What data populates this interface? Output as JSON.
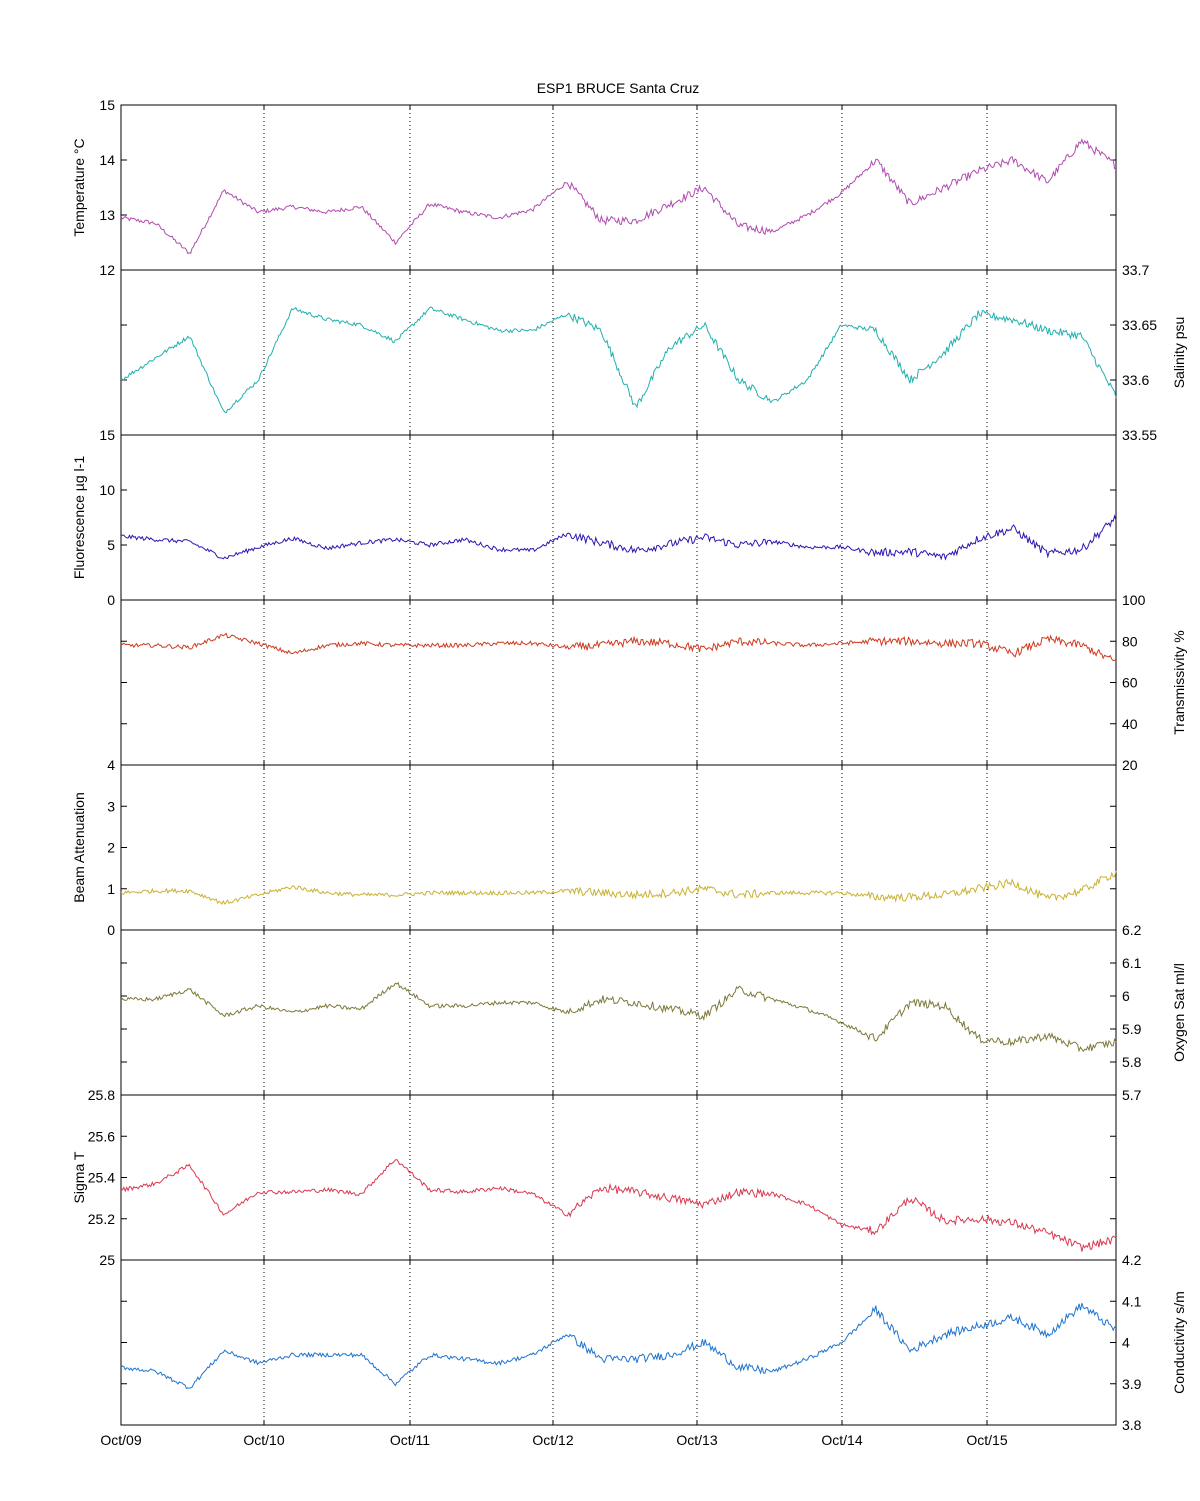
{
  "title": "ESP1 BRUCE Santa Cruz",
  "x_ticks": [
    "Oct/09",
    "Oct/10",
    "Oct/11",
    "Oct/12",
    "Oct/13",
    "Oct/14",
    "Oct/15"
  ],
  "chart_data": [
    {
      "type": "line",
      "ylabel": "Temperature °C",
      "axis_side": "left",
      "ylim": [
        12,
        15
      ],
      "yticks": [
        "12",
        "13",
        "14",
        "15"
      ],
      "color": "#b04cb0",
      "xlim": [
        "2007-10-09 00:00",
        "2007-10-15 22:00"
      ],
      "series": [
        {
          "x": [
            "Oct/09",
            "Oct/09 08:00",
            "Oct/09 12:00",
            "Oct/09 16:00",
            "Oct/10",
            "Oct/10 06:00",
            "Oct/10 12:00",
            "Oct/10 18:00",
            "Oct/10 22:00",
            "Oct/11",
            "Oct/11 06:00",
            "Oct/11 12:00",
            "Oct/11 18:00",
            "Oct/12",
            "Oct/12 06:00",
            "Oct/12 12:00",
            "Oct/12 18:00",
            "Oct/13",
            "Oct/13 06:00",
            "Oct/13 12:00",
            "Oct/13 18:00",
            "Oct/14",
            "Oct/14 06:00",
            "Oct/14 12:00",
            "Oct/14 18:00",
            "Oct/15",
            "Oct/15 06:00",
            "Oct/15 12:00",
            "Oct/15 18:00",
            "Oct/15 22:00"
          ],
          "values": [
            12.95,
            12.85,
            12.3,
            13.45,
            13.05,
            13.15,
            13.05,
            13.15,
            12.5,
            13.2,
            13.05,
            12.95,
            13.1,
            13.6,
            12.9,
            12.9,
            13.2,
            13.5,
            12.8,
            12.7,
            13.0,
            13.4,
            14.0,
            13.2,
            13.5,
            13.8,
            14.0,
            13.6,
            14.35,
            13.9
          ]
        }
      ]
    },
    {
      "type": "line",
      "ylabel": "Salinity psu",
      "axis_side": "right",
      "ylim": [
        33.55,
        33.7
      ],
      "yticks": [
        "33.55",
        "33.6",
        "33.65",
        "33.7"
      ],
      "color": "#21b0b0",
      "series": [
        {
          "values": [
            33.6,
            33.62,
            33.64,
            33.57,
            33.6,
            33.665,
            33.655,
            33.65,
            33.635,
            33.665,
            33.655,
            33.645,
            33.645,
            33.66,
            33.645,
            33.575,
            33.63,
            33.65,
            33.6,
            33.58,
            33.6,
            33.65,
            33.645,
            33.6,
            33.625,
            33.66,
            33.655,
            33.645,
            33.64,
            33.585
          ]
        }
      ]
    },
    {
      "type": "line",
      "ylabel": "Fluorescence µg l-1",
      "axis_side": "left",
      "ylim": [
        0,
        15
      ],
      "yticks": [
        "0",
        "5",
        "10",
        "15"
      ],
      "color": "#2a18b0",
      "series": [
        {
          "values": [
            5.8,
            5.5,
            5.3,
            3.8,
            4.8,
            5.6,
            4.7,
            5.2,
            5.5,
            5.0,
            5.5,
            4.6,
            4.5,
            6.0,
            5.2,
            4.5,
            5.1,
            5.7,
            5.0,
            5.3,
            4.8,
            4.8,
            4.3,
            4.4,
            3.9,
            5.6,
            6.5,
            4.2,
            4.6,
            7.5
          ]
        }
      ]
    },
    {
      "type": "line",
      "ylabel": "Transmissivity %",
      "axis_side": "right",
      "ylim": [
        20,
        100
      ],
      "yticks": [
        "20",
        "40",
        "60",
        "80",
        "100"
      ],
      "color": "#cf3a1e",
      "series": [
        {
          "values": [
            78,
            78,
            77,
            83,
            79,
            74,
            78,
            79,
            78,
            78,
            78,
            79,
            79,
            77,
            78,
            80,
            79,
            76,
            80,
            79,
            78,
            79,
            80,
            80,
            79,
            79,
            74,
            81,
            78,
            70
          ]
        }
      ]
    },
    {
      "type": "line",
      "ylabel": "Beam Attenuation",
      "axis_side": "left",
      "ylim": [
        0,
        4
      ],
      "yticks": [
        "0",
        "1",
        "2",
        "3",
        "4"
      ],
      "color": "#c9b234",
      "series": [
        {
          "values": [
            0.9,
            0.95,
            0.95,
            0.65,
            0.85,
            1.05,
            0.9,
            0.85,
            0.85,
            0.9,
            0.9,
            0.9,
            0.9,
            0.95,
            0.9,
            0.85,
            0.9,
            1.0,
            0.85,
            0.9,
            0.9,
            0.9,
            0.8,
            0.8,
            0.85,
            1.0,
            1.15,
            0.75,
            0.95,
            1.4
          ]
        }
      ]
    },
    {
      "type": "line",
      "ylabel": "Oxygen Sat ml/l",
      "axis_side": "right",
      "ylim": [
        5.7,
        6.2
      ],
      "yticks": [
        "5.7",
        "5.8",
        "5.9",
        "6",
        "6.1",
        "6.2"
      ],
      "color": "#7e7a3a",
      "series": [
        {
          "values": [
            5.99,
            5.99,
            6.02,
            5.94,
            5.97,
            5.95,
            5.97,
            5.96,
            6.04,
            5.97,
            5.97,
            5.98,
            5.98,
            5.95,
            5.99,
            5.98,
            5.96,
            5.94,
            6.02,
            5.99,
            5.96,
            5.92,
            5.87,
            5.98,
            5.97,
            5.87,
            5.86,
            5.88,
            5.84,
            5.86
          ]
        }
      ]
    },
    {
      "type": "line",
      "ylabel": "Sigma T",
      "axis_side": "left",
      "ylim": [
        25,
        25.8
      ],
      "yticks": [
        "25",
        "25.2",
        "25.4",
        "25.6",
        "25.8"
      ],
      "color": "#d83a50",
      "series": [
        {
          "values": [
            25.34,
            25.37,
            25.46,
            25.22,
            25.33,
            25.33,
            25.34,
            25.32,
            25.49,
            25.34,
            25.33,
            25.35,
            25.32,
            25.22,
            25.35,
            25.33,
            25.3,
            25.27,
            25.33,
            25.32,
            25.27,
            25.17,
            25.14,
            25.3,
            25.19,
            25.2,
            25.18,
            25.13,
            25.06,
            25.1
          ]
        }
      ]
    },
    {
      "type": "line",
      "ylabel": "Conductivity s/m",
      "axis_side": "right",
      "ylim": [
        3.8,
        4.2
      ],
      "yticks": [
        "3.8",
        "3.9",
        "4",
        "4.1",
        "4.2"
      ],
      "color": "#1f74d0",
      "series": [
        {
          "values": [
            3.94,
            3.93,
            3.89,
            3.98,
            3.95,
            3.97,
            3.97,
            3.97,
            3.9,
            3.97,
            3.96,
            3.95,
            3.97,
            4.02,
            3.96,
            3.96,
            3.97,
            4.0,
            3.94,
            3.93,
            3.96,
            4.0,
            4.08,
            3.98,
            4.02,
            4.04,
            4.06,
            4.02,
            4.09,
            4.03
          ]
        }
      ]
    }
  ]
}
